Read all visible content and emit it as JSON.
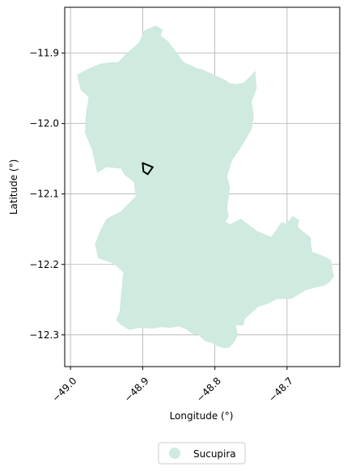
{
  "map": {
    "xlabel": "Longitude (°)",
    "ylabel": "Latitude (°)",
    "x_ticks": [
      "−49.0",
      "−48.9",
      "−48.8",
      "−48.7"
    ],
    "y_ticks": [
      "−11.9",
      "−12.0",
      "−12.1",
      "−12.2",
      "−12.3"
    ],
    "grid": true,
    "legend": {
      "placement": "bottom-center",
      "items": [
        {
          "label": "Sucupira",
          "color": "#cfeade"
        }
      ]
    },
    "colors": {
      "region_fill": "#cfeade",
      "marker_outline": "#000000",
      "grid": "#b0b0b0"
    }
  },
  "chart_data": {
    "type": "map",
    "xlim": [
      -49.008,
      -48.627
    ],
    "ylim": [
      -12.345,
      -11.835
    ],
    "x_ticks": [
      -49.0,
      -48.9,
      -48.8,
      -48.7
    ],
    "y_ticks": [
      -11.9,
      -12.0,
      -12.1,
      -12.2,
      -12.3
    ],
    "region": {
      "name": "Sucupira",
      "outline_lon_lat": [
        [
          -48.882,
          -11.861
        ],
        [
          -48.872,
          -11.867
        ],
        [
          -48.875,
          -11.875
        ],
        [
          -48.865,
          -11.883
        ],
        [
          -48.853,
          -11.899
        ],
        [
          -48.843,
          -11.913
        ],
        [
          -48.826,
          -11.921
        ],
        [
          -48.818,
          -11.923
        ],
        [
          -48.807,
          -11.928
        ],
        [
          -48.784,
          -11.939
        ],
        [
          -48.78,
          -11.943
        ],
        [
          -48.77,
          -11.944
        ],
        [
          -48.76,
          -11.942
        ],
        [
          -48.754,
          -11.936
        ],
        [
          -48.75,
          -11.932
        ],
        [
          -48.744,
          -11.925
        ],
        [
          -48.742,
          -11.95
        ],
        [
          -48.745,
          -11.958
        ],
        [
          -48.749,
          -11.969
        ],
        [
          -48.746,
          -11.988
        ],
        [
          -48.748,
          -12.004
        ],
        [
          -48.75,
          -12.01
        ],
        [
          -48.765,
          -12.036
        ],
        [
          -48.776,
          -12.052
        ],
        [
          -48.783,
          -12.075
        ],
        [
          -48.779,
          -12.091
        ],
        [
          -48.783,
          -12.12
        ],
        [
          -48.781,
          -12.132
        ],
        [
          -48.785,
          -12.139
        ],
        [
          -48.779,
          -12.143
        ],
        [
          -48.764,
          -12.135
        ],
        [
          -48.741,
          -12.153
        ],
        [
          -48.722,
          -12.161
        ],
        [
          -48.715,
          -12.151
        ],
        [
          -48.708,
          -12.14
        ],
        [
          -48.701,
          -12.142
        ],
        [
          -48.692,
          -12.131
        ],
        [
          -48.683,
          -12.137
        ],
        [
          -48.685,
          -12.147
        ],
        [
          -48.667,
          -12.162
        ],
        [
          -48.667,
          -12.17
        ],
        [
          -48.665,
          -12.182
        ],
        [
          -48.65,
          -12.188
        ],
        [
          -48.639,
          -12.194
        ],
        [
          -48.637,
          -12.208
        ],
        [
          -48.635,
          -12.217
        ],
        [
          -48.641,
          -12.225
        ],
        [
          -48.648,
          -12.23
        ],
        [
          -48.662,
          -12.233
        ],
        [
          -48.675,
          -12.237
        ],
        [
          -48.694,
          -12.249
        ],
        [
          -48.714,
          -12.249
        ],
        [
          -48.727,
          -12.256
        ],
        [
          -48.74,
          -12.26
        ],
        [
          -48.758,
          -12.277
        ],
        [
          -48.761,
          -12.287
        ],
        [
          -48.771,
          -12.286
        ],
        [
          -48.768,
          -12.3
        ],
        [
          -48.773,
          -12.31
        ],
        [
          -48.78,
          -12.318
        ],
        [
          -48.786,
          -12.319
        ],
        [
          -48.796,
          -12.316
        ],
        [
          -48.805,
          -12.311
        ],
        [
          -48.813,
          -12.309
        ],
        [
          -48.823,
          -12.3
        ],
        [
          -48.832,
          -12.298
        ],
        [
          -48.84,
          -12.292
        ],
        [
          -48.85,
          -12.288
        ],
        [
          -48.862,
          -12.29
        ],
        [
          -48.874,
          -12.289
        ],
        [
          -48.887,
          -12.291
        ],
        [
          -48.905,
          -12.29
        ],
        [
          -48.918,
          -12.293
        ],
        [
          -48.93,
          -12.286
        ],
        [
          -48.937,
          -12.279
        ],
        [
          -48.932,
          -12.267
        ],
        [
          -48.93,
          -12.244
        ],
        [
          -48.927,
          -12.211
        ],
        [
          -48.94,
          -12.199
        ],
        [
          -48.948,
          -12.196
        ],
        [
          -48.962,
          -12.191
        ],
        [
          -48.966,
          -12.171
        ],
        [
          -48.958,
          -12.15
        ],
        [
          -48.95,
          -12.135
        ],
        [
          -48.931,
          -12.125
        ],
        [
          -48.91,
          -12.104
        ],
        [
          -48.912,
          -12.083
        ],
        [
          -48.925,
          -12.073
        ],
        [
          -48.93,
          -12.064
        ],
        [
          -48.95,
          -12.062
        ],
        [
          -48.963,
          -12.07
        ],
        [
          -48.97,
          -12.038
        ],
        [
          -48.98,
          -12.013
        ],
        [
          -48.979,
          -11.99
        ],
        [
          -48.975,
          -11.962
        ],
        [
          -48.986,
          -11.952
        ],
        [
          -48.991,
          -11.931
        ],
        [
          -48.975,
          -11.922
        ],
        [
          -48.958,
          -11.915
        ],
        [
          -48.943,
          -11.913
        ],
        [
          -48.934,
          -11.913
        ],
        [
          -48.924,
          -11.902
        ],
        [
          -48.905,
          -11.885
        ],
        [
          -48.898,
          -11.868
        ],
        [
          -48.882,
          -11.861
        ]
      ]
    },
    "marker": {
      "shape": "quadrilateral",
      "outline_lon_lat": [
        [
          -48.9,
          -12.056
        ],
        [
          -48.886,
          -12.062
        ],
        [
          -48.893,
          -12.072
        ],
        [
          -48.899,
          -12.068
        ],
        [
          -48.9,
          -12.056
        ]
      ]
    }
  }
}
